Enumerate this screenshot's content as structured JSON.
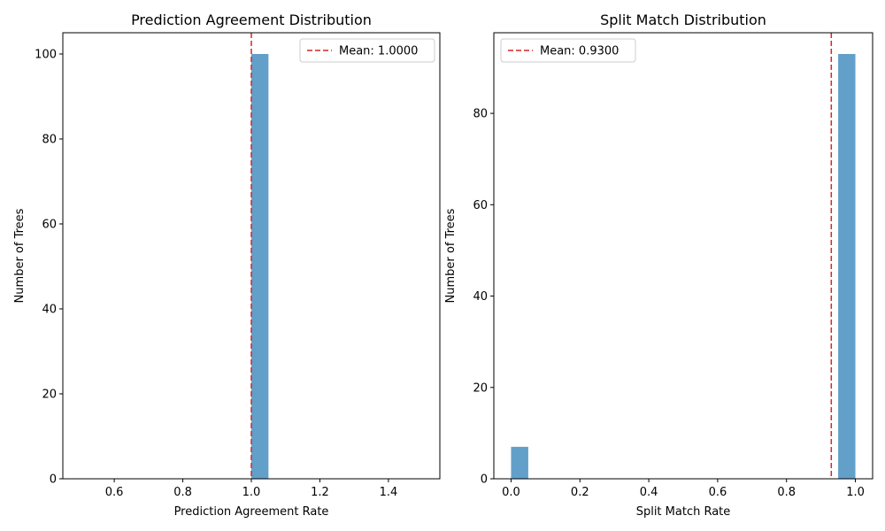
{
  "colors": {
    "bar": "#1f77b4",
    "bar_opacity": 0.7,
    "mean_line": "#d62728",
    "axis": "#000000"
  },
  "chart_data": [
    {
      "type": "bar",
      "title": "Prediction Agreement Distribution",
      "xlabel": "Prediction Agreement Rate",
      "ylabel": "Number of Trees",
      "xlim": [
        0.45,
        1.55
      ],
      "ylim": [
        0,
        105
      ],
      "xticks": [
        0.6,
        0.8,
        1.0,
        1.2,
        1.4
      ],
      "xtick_labels": [
        "0.6",
        "0.8",
        "1.0",
        "1.2",
        "1.4"
      ],
      "yticks": [
        0,
        20,
        40,
        60,
        80,
        100
      ],
      "ytick_labels": [
        "0",
        "20",
        "40",
        "60",
        "80",
        "100"
      ],
      "bins": [
        {
          "x0": 1.0,
          "x1": 1.05,
          "count": 100
        }
      ],
      "mean": 1.0,
      "legend": {
        "label": "Mean: 1.0000",
        "position": "top-right"
      }
    },
    {
      "type": "bar",
      "title": "Split Match Distribution",
      "xlabel": "Split Match Rate",
      "ylabel": "Number of Trees",
      "xlim": [
        -0.05,
        1.05
      ],
      "ylim": [
        0,
        97.65
      ],
      "xticks": [
        0.0,
        0.2,
        0.4,
        0.6,
        0.8,
        1.0
      ],
      "xtick_labels": [
        "0.0",
        "0.2",
        "0.4",
        "0.6",
        "0.8",
        "1.0"
      ],
      "yticks": [
        0,
        20,
        40,
        60,
        80
      ],
      "ytick_labels": [
        "0",
        "20",
        "40",
        "60",
        "80"
      ],
      "bins": [
        {
          "x0": 0.0,
          "x1": 0.05,
          "count": 7
        },
        {
          "x0": 0.95,
          "x1": 1.0,
          "count": 93
        }
      ],
      "mean": 0.93,
      "legend": {
        "label": "Mean: 0.9300",
        "position": "top-left"
      }
    }
  ]
}
